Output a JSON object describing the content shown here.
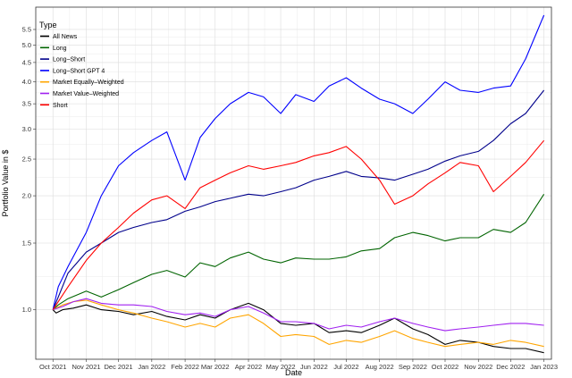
{
  "chart_data": {
    "type": "line",
    "xlabel": "Date",
    "ylabel": "Portfolio Value in $",
    "y_scale": "log",
    "ylim": [
      0.74,
      6.3
    ],
    "xlim": [
      "2021-09-15",
      "2023-01-08"
    ],
    "grid": true,
    "legend": {
      "title": "Type",
      "placement": "top-left"
    },
    "x_ticks": [
      {
        "date": "2021-10-01",
        "label": "Oct 2021"
      },
      {
        "date": "2021-11-01",
        "label": "Nov 2021"
      },
      {
        "date": "2021-12-01",
        "label": "Dec 2021"
      },
      {
        "date": "2022-01-01",
        "label": "Jan 2022"
      },
      {
        "date": "2022-02-01",
        "label": "Feb 2022"
      },
      {
        "date": "2022-03-01",
        "label": "Mar 2022"
      },
      {
        "date": "2022-04-01",
        "label": "Apr 2022"
      },
      {
        "date": "2022-05-01",
        "label": "May 2022"
      },
      {
        "date": "2022-06-01",
        "label": "Jun 2022"
      },
      {
        "date": "2022-07-01",
        "label": "Jul 2022"
      },
      {
        "date": "2022-08-01",
        "label": "Aug 2022"
      },
      {
        "date": "2022-09-01",
        "label": "Sep 2022"
      },
      {
        "date": "2022-10-01",
        "label": "Oct 2022"
      },
      {
        "date": "2022-11-01",
        "label": "Nov 2022"
      },
      {
        "date": "2022-12-01",
        "label": "Dec 2022"
      },
      {
        "date": "2023-01-01",
        "label": "Jan 2023"
      }
    ],
    "y_ticks": [
      {
        "value": 1.0,
        "label": "1.0"
      },
      {
        "value": 1.5,
        "label": "1.5"
      },
      {
        "value": 2.0,
        "label": "2.0"
      },
      {
        "value": 2.5,
        "label": "2.5"
      },
      {
        "value": 3.0,
        "label": "3.0"
      },
      {
        "value": 3.5,
        "label": "3.5"
      },
      {
        "value": 4.0,
        "label": "4.0"
      },
      {
        "value": 4.5,
        "label": "4.5"
      },
      {
        "value": 5.0,
        "label": "5.0"
      },
      {
        "value": 5.5,
        "label": "5.5"
      }
    ],
    "series": [
      {
        "name": "All News",
        "color": "#000000",
        "points": [
          [
            "2021-10-01",
            1.0
          ],
          [
            "2021-10-04",
            0.98
          ],
          [
            "2021-10-10",
            1.0
          ],
          [
            "2021-10-20",
            1.01
          ],
          [
            "2021-11-01",
            1.03
          ],
          [
            "2021-11-15",
            1.0
          ],
          [
            "2021-12-01",
            0.99
          ],
          [
            "2021-12-15",
            0.97
          ],
          [
            "2022-01-01",
            0.99
          ],
          [
            "2022-01-15",
            0.96
          ],
          [
            "2022-02-01",
            0.94
          ],
          [
            "2022-02-15",
            0.97
          ],
          [
            "2022-03-01",
            0.95
          ],
          [
            "2022-03-15",
            1.0
          ],
          [
            "2022-04-01",
            1.04
          ],
          [
            "2022-04-15",
            1.0
          ],
          [
            "2022-05-01",
            0.92
          ],
          [
            "2022-05-15",
            0.91
          ],
          [
            "2022-06-01",
            0.92
          ],
          [
            "2022-06-15",
            0.87
          ],
          [
            "2022-07-01",
            0.88
          ],
          [
            "2022-07-15",
            0.87
          ],
          [
            "2022-08-01",
            0.91
          ],
          [
            "2022-08-15",
            0.95
          ],
          [
            "2022-09-01",
            0.89
          ],
          [
            "2022-09-15",
            0.86
          ],
          [
            "2022-10-01",
            0.81
          ],
          [
            "2022-10-15",
            0.83
          ],
          [
            "2022-11-01",
            0.82
          ],
          [
            "2022-11-15",
            0.8
          ],
          [
            "2022-12-01",
            0.79
          ],
          [
            "2022-12-15",
            0.79
          ],
          [
            "2023-01-01",
            0.77
          ]
        ]
      },
      {
        "name": "Long",
        "color": "#006400",
        "points": [
          [
            "2021-10-01",
            1.0
          ],
          [
            "2021-10-06",
            1.03
          ],
          [
            "2021-10-15",
            1.07
          ],
          [
            "2021-11-01",
            1.12
          ],
          [
            "2021-11-15",
            1.08
          ],
          [
            "2021-12-01",
            1.13
          ],
          [
            "2021-12-15",
            1.18
          ],
          [
            "2022-01-01",
            1.24
          ],
          [
            "2022-01-15",
            1.27
          ],
          [
            "2022-02-01",
            1.22
          ],
          [
            "2022-02-15",
            1.33
          ],
          [
            "2022-03-01",
            1.3
          ],
          [
            "2022-03-15",
            1.37
          ],
          [
            "2022-04-01",
            1.42
          ],
          [
            "2022-04-15",
            1.36
          ],
          [
            "2022-05-01",
            1.33
          ],
          [
            "2022-05-15",
            1.37
          ],
          [
            "2022-06-01",
            1.36
          ],
          [
            "2022-06-15",
            1.36
          ],
          [
            "2022-07-01",
            1.38
          ],
          [
            "2022-07-15",
            1.43
          ],
          [
            "2022-08-01",
            1.45
          ],
          [
            "2022-08-15",
            1.55
          ],
          [
            "2022-09-01",
            1.6
          ],
          [
            "2022-09-15",
            1.57
          ],
          [
            "2022-10-01",
            1.52
          ],
          [
            "2022-10-15",
            1.55
          ],
          [
            "2022-11-01",
            1.55
          ],
          [
            "2022-11-15",
            1.63
          ],
          [
            "2022-12-01",
            1.6
          ],
          [
            "2022-12-15",
            1.7
          ],
          [
            "2023-01-01",
            2.02
          ]
        ]
      },
      {
        "name": "Long–Short",
        "color": "#00008b",
        "points": [
          [
            "2021-10-01",
            1.0
          ],
          [
            "2021-10-06",
            1.08
          ],
          [
            "2021-10-15",
            1.25
          ],
          [
            "2021-11-01",
            1.42
          ],
          [
            "2021-11-15",
            1.5
          ],
          [
            "2021-12-01",
            1.6
          ],
          [
            "2021-12-15",
            1.65
          ],
          [
            "2022-01-01",
            1.7
          ],
          [
            "2022-01-15",
            1.73
          ],
          [
            "2022-02-01",
            1.82
          ],
          [
            "2022-02-15",
            1.87
          ],
          [
            "2022-03-01",
            1.93
          ],
          [
            "2022-03-15",
            1.97
          ],
          [
            "2022-04-01",
            2.02
          ],
          [
            "2022-04-15",
            2.0
          ],
          [
            "2022-05-01",
            2.05
          ],
          [
            "2022-05-15",
            2.1
          ],
          [
            "2022-06-01",
            2.2
          ],
          [
            "2022-06-15",
            2.25
          ],
          [
            "2022-07-01",
            2.32
          ],
          [
            "2022-07-15",
            2.25
          ],
          [
            "2022-08-01",
            2.23
          ],
          [
            "2022-08-15",
            2.2
          ],
          [
            "2022-09-01",
            2.28
          ],
          [
            "2022-09-15",
            2.35
          ],
          [
            "2022-10-01",
            2.47
          ],
          [
            "2022-10-15",
            2.55
          ],
          [
            "2022-11-01",
            2.62
          ],
          [
            "2022-11-15",
            2.8
          ],
          [
            "2022-12-01",
            3.1
          ],
          [
            "2022-12-15",
            3.3
          ],
          [
            "2023-01-01",
            3.8
          ]
        ]
      },
      {
        "name": "Long–Short GPT 4",
        "color": "#0000ff",
        "points": [
          [
            "2021-10-01",
            1.0
          ],
          [
            "2021-10-06",
            1.15
          ],
          [
            "2021-10-15",
            1.3
          ],
          [
            "2021-11-01",
            1.6
          ],
          [
            "2021-11-15",
            2.0
          ],
          [
            "2021-12-01",
            2.4
          ],
          [
            "2021-12-15",
            2.6
          ],
          [
            "2022-01-01",
            2.8
          ],
          [
            "2022-01-15",
            2.95
          ],
          [
            "2022-02-01",
            2.2
          ],
          [
            "2022-02-15",
            2.85
          ],
          [
            "2022-03-01",
            3.2
          ],
          [
            "2022-03-15",
            3.5
          ],
          [
            "2022-04-01",
            3.75
          ],
          [
            "2022-04-15",
            3.65
          ],
          [
            "2022-05-01",
            3.3
          ],
          [
            "2022-05-15",
            3.7
          ],
          [
            "2022-06-01",
            3.55
          ],
          [
            "2022-06-15",
            3.9
          ],
          [
            "2022-07-01",
            4.1
          ],
          [
            "2022-07-15",
            3.85
          ],
          [
            "2022-08-01",
            3.6
          ],
          [
            "2022-08-15",
            3.5
          ],
          [
            "2022-09-01",
            3.3
          ],
          [
            "2022-09-15",
            3.6
          ],
          [
            "2022-10-01",
            4.0
          ],
          [
            "2022-10-15",
            3.8
          ],
          [
            "2022-11-01",
            3.75
          ],
          [
            "2022-11-15",
            3.85
          ],
          [
            "2022-12-01",
            3.9
          ],
          [
            "2022-12-15",
            4.6
          ],
          [
            "2023-01-01",
            6.0
          ]
        ]
      },
      {
        "name": "Market Equally–Weighted",
        "color": "#ffa500",
        "points": [
          [
            "2021-10-01",
            1.0
          ],
          [
            "2021-10-10",
            1.03
          ],
          [
            "2021-10-20",
            1.05
          ],
          [
            "2021-11-01",
            1.06
          ],
          [
            "2021-11-15",
            1.03
          ],
          [
            "2021-12-01",
            1.0
          ],
          [
            "2021-12-15",
            0.98
          ],
          [
            "2022-01-01",
            0.95
          ],
          [
            "2022-01-15",
            0.93
          ],
          [
            "2022-02-01",
            0.9
          ],
          [
            "2022-02-15",
            0.92
          ],
          [
            "2022-03-01",
            0.9
          ],
          [
            "2022-03-15",
            0.95
          ],
          [
            "2022-04-01",
            0.97
          ],
          [
            "2022-04-15",
            0.92
          ],
          [
            "2022-05-01",
            0.85
          ],
          [
            "2022-05-15",
            0.86
          ],
          [
            "2022-06-01",
            0.85
          ],
          [
            "2022-06-15",
            0.81
          ],
          [
            "2022-07-01",
            0.83
          ],
          [
            "2022-07-15",
            0.82
          ],
          [
            "2022-08-01",
            0.85
          ],
          [
            "2022-08-15",
            0.88
          ],
          [
            "2022-09-01",
            0.84
          ],
          [
            "2022-09-15",
            0.82
          ],
          [
            "2022-10-01",
            0.8
          ],
          [
            "2022-10-15",
            0.81
          ],
          [
            "2022-11-01",
            0.82
          ],
          [
            "2022-11-15",
            0.81
          ],
          [
            "2022-12-01",
            0.83
          ],
          [
            "2022-12-15",
            0.82
          ],
          [
            "2023-01-01",
            0.8
          ]
        ]
      },
      {
        "name": "Market Value–Weighted",
        "color": "#a020f0",
        "points": [
          [
            "2021-10-01",
            1.0
          ],
          [
            "2021-10-10",
            1.02
          ],
          [
            "2021-10-20",
            1.05
          ],
          [
            "2021-11-01",
            1.07
          ],
          [
            "2021-11-15",
            1.04
          ],
          [
            "2021-12-01",
            1.03
          ],
          [
            "2021-12-15",
            1.03
          ],
          [
            "2022-01-01",
            1.02
          ],
          [
            "2022-01-15",
            0.99
          ],
          [
            "2022-02-01",
            0.97
          ],
          [
            "2022-02-15",
            0.98
          ],
          [
            "2022-03-01",
            0.96
          ],
          [
            "2022-03-15",
            1.0
          ],
          [
            "2022-04-01",
            1.02
          ],
          [
            "2022-04-15",
            0.98
          ],
          [
            "2022-05-01",
            0.93
          ],
          [
            "2022-05-15",
            0.93
          ],
          [
            "2022-06-01",
            0.92
          ],
          [
            "2022-06-15",
            0.89
          ],
          [
            "2022-07-01",
            0.91
          ],
          [
            "2022-07-15",
            0.9
          ],
          [
            "2022-08-01",
            0.93
          ],
          [
            "2022-08-15",
            0.95
          ],
          [
            "2022-09-01",
            0.92
          ],
          [
            "2022-09-15",
            0.9
          ],
          [
            "2022-10-01",
            0.88
          ],
          [
            "2022-10-15",
            0.89
          ],
          [
            "2022-11-01",
            0.9
          ],
          [
            "2022-11-15",
            0.91
          ],
          [
            "2022-12-01",
            0.92
          ],
          [
            "2022-12-15",
            0.92
          ],
          [
            "2023-01-01",
            0.91
          ]
        ]
      },
      {
        "name": "Short",
        "color": "#ff0000",
        "points": [
          [
            "2021-10-01",
            1.0
          ],
          [
            "2021-10-06",
            1.05
          ],
          [
            "2021-10-15",
            1.15
          ],
          [
            "2021-11-01",
            1.35
          ],
          [
            "2021-11-15",
            1.5
          ],
          [
            "2021-12-01",
            1.65
          ],
          [
            "2021-12-15",
            1.8
          ],
          [
            "2022-01-01",
            1.95
          ],
          [
            "2022-01-15",
            2.0
          ],
          [
            "2022-02-01",
            1.85
          ],
          [
            "2022-02-15",
            2.1
          ],
          [
            "2022-03-01",
            2.2
          ],
          [
            "2022-03-15",
            2.3
          ],
          [
            "2022-04-01",
            2.4
          ],
          [
            "2022-04-15",
            2.35
          ],
          [
            "2022-05-01",
            2.4
          ],
          [
            "2022-05-15",
            2.45
          ],
          [
            "2022-06-01",
            2.55
          ],
          [
            "2022-06-15",
            2.6
          ],
          [
            "2022-07-01",
            2.7
          ],
          [
            "2022-07-15",
            2.5
          ],
          [
            "2022-08-01",
            2.2
          ],
          [
            "2022-08-15",
            1.9
          ],
          [
            "2022-09-01",
            2.0
          ],
          [
            "2022-09-15",
            2.15
          ],
          [
            "2022-10-01",
            2.3
          ],
          [
            "2022-10-15",
            2.45
          ],
          [
            "2022-11-01",
            2.4
          ],
          [
            "2022-11-15",
            2.05
          ],
          [
            "2022-12-01",
            2.25
          ],
          [
            "2022-12-15",
            2.45
          ],
          [
            "2023-01-01",
            2.8
          ]
        ]
      }
    ]
  }
}
